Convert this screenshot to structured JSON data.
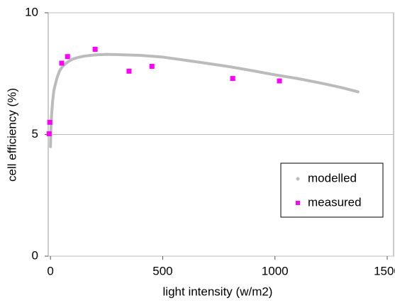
{
  "chart_data": {
    "type": "line_scatter",
    "x_label": "light intensity (w/m2)",
    "y_label": "cell efficiency (%)",
    "xlim": [
      -10,
      1500
    ],
    "xticks": [
      0,
      500,
      1000,
      1500
    ],
    "ylim": [
      0,
      10
    ],
    "yticks": [
      0,
      5,
      10
    ],
    "grid": true,
    "legend": "lower right",
    "series": [
      {
        "name": "modelled",
        "color": "#bbbbbb",
        "kind": "line",
        "x": [
          0,
          2,
          5,
          10,
          15,
          20,
          30,
          40,
          50,
          60,
          80,
          100,
          125,
          150,
          200,
          250,
          300,
          400,
          500,
          600,
          700,
          800,
          900,
          1000,
          1100,
          1200,
          1250,
          1300,
          1350,
          1370
        ],
        "values": [
          4.5,
          5.2,
          5.8,
          6.4,
          6.8,
          7.0,
          7.35,
          7.6,
          7.75,
          7.85,
          8.0,
          8.1,
          8.17,
          8.22,
          8.27,
          8.29,
          8.28,
          8.25,
          8.18,
          8.05,
          7.92,
          7.78,
          7.62,
          7.45,
          7.3,
          7.12,
          7.02,
          6.92,
          6.8,
          6.75
        ]
      },
      {
        "name": "measured",
        "color": "#ff00ff",
        "kind": "scatter",
        "x": [
          -6,
          -3,
          50,
          76,
          199,
          350,
          452,
          812,
          1020
        ],
        "values": [
          5.03,
          5.5,
          7.93,
          8.2,
          8.5,
          7.6,
          7.8,
          7.3,
          7.2
        ]
      }
    ]
  }
}
